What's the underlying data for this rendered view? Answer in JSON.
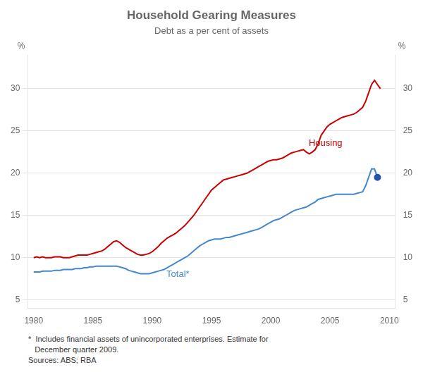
{
  "chart_data": {
    "type": "line",
    "title": "Household Gearing Measures",
    "subtitle": "Debt as a per cent of assets",
    "ylabel": "%",
    "y2label": "%",
    "xlim": [
      1979.5,
      2010.5
    ],
    "xticks": [
      1980,
      1985,
      1990,
      1995,
      2000,
      2005,
      2010
    ],
    "ylim": [
      4,
      34
    ],
    "yticks": [
      5,
      10,
      15,
      20,
      25,
      30
    ],
    "y2lim": [
      4,
      34
    ],
    "y2ticks": [
      5,
      10,
      15,
      20,
      25,
      30
    ],
    "grid": "y",
    "footnote": [
      "*  Includes financial assets of unincorporated enterprises. Estimate for",
      "   December quarter 2009.",
      "Sources: ABS; RBA"
    ],
    "annotations": [
      {
        "text": "Housing",
        "x": 2003.2,
        "y": 23.5,
        "color": "#cc0000"
      },
      {
        "text": "Total*",
        "x": 1991.2,
        "y": 8.0,
        "color": "#4488cc"
      }
    ],
    "series": [
      {
        "name": "Housing",
        "color": "#cc0000",
        "type": "line",
        "marker": "none",
        "x": [
          1980,
          1980.25,
          1980.5,
          1980.75,
          1981,
          1981.25,
          1981.5,
          1981.75,
          1982,
          1982.25,
          1982.5,
          1982.75,
          1983,
          1983.25,
          1983.5,
          1983.75,
          1984,
          1984.25,
          1984.5,
          1984.75,
          1985,
          1985.25,
          1985.5,
          1985.75,
          1986,
          1986.25,
          1986.5,
          1986.75,
          1987,
          1987.25,
          1987.5,
          1987.75,
          1988,
          1988.25,
          1988.5,
          1988.75,
          1989,
          1989.25,
          1989.5,
          1989.75,
          1990,
          1990.25,
          1990.5,
          1990.75,
          1991,
          1991.25,
          1991.5,
          1991.75,
          1992,
          1992.25,
          1992.5,
          1992.75,
          1993,
          1993.25,
          1993.5,
          1993.75,
          1994,
          1994.25,
          1994.5,
          1994.75,
          1995,
          1995.25,
          1995.5,
          1995.75,
          1996,
          1996.25,
          1996.5,
          1996.75,
          1997,
          1997.25,
          1997.5,
          1997.75,
          1998,
          1998.25,
          1998.5,
          1998.75,
          1999,
          1999.25,
          1999.5,
          1999.75,
          2000,
          2000.25,
          2000.5,
          2000.75,
          2001,
          2001.25,
          2001.5,
          2001.75,
          2002,
          2002.25,
          2002.5,
          2002.75,
          2003,
          2003.25,
          2003.5,
          2003.75,
          2004,
          2004.25,
          2004.5,
          2004.75,
          2005,
          2005.25,
          2005.5,
          2005.75,
          2006,
          2006.25,
          2006.5,
          2006.75,
          2007,
          2007.25,
          2007.5,
          2007.75,
          2008,
          2008.25,
          2008.5,
          2008.75,
          2009,
          2009.25
        ],
        "values": [
          10.0,
          10.1,
          10.0,
          10.1,
          10.0,
          10.0,
          10.0,
          10.1,
          10.1,
          10.1,
          10.0,
          10.0,
          10.0,
          10.1,
          10.2,
          10.3,
          10.3,
          10.3,
          10.3,
          10.4,
          10.5,
          10.6,
          10.7,
          10.8,
          11.0,
          11.3,
          11.6,
          11.9,
          12.0,
          11.8,
          11.5,
          11.2,
          11.0,
          10.8,
          10.6,
          10.4,
          10.3,
          10.3,
          10.4,
          10.5,
          10.7,
          11.0,
          11.3,
          11.7,
          12.0,
          12.3,
          12.5,
          12.7,
          12.9,
          13.2,
          13.5,
          13.8,
          14.2,
          14.6,
          15.0,
          15.5,
          16.0,
          16.5,
          17.0,
          17.5,
          18.0,
          18.3,
          18.6,
          18.9,
          19.2,
          19.3,
          19.4,
          19.5,
          19.6,
          19.7,
          19.8,
          19.9,
          20.0,
          20.2,
          20.4,
          20.6,
          20.8,
          21.0,
          21.2,
          21.4,
          21.5,
          21.6,
          21.6,
          21.7,
          21.8,
          22.0,
          22.2,
          22.4,
          22.5,
          22.6,
          22.7,
          22.8,
          22.5,
          22.3,
          22.5,
          22.8,
          23.5,
          24.5,
          25.0,
          25.5,
          25.8,
          26.0,
          26.2,
          26.4,
          26.6,
          26.7,
          26.8,
          26.9,
          27.0,
          27.2,
          27.5,
          27.8,
          28.5,
          29.5,
          30.5,
          31.0,
          30.5,
          30.0
        ]
      },
      {
        "name": "Total*",
        "color": "#4488cc",
        "type": "line",
        "marker": "none",
        "x": [
          1980,
          1980.25,
          1980.5,
          1980.75,
          1981,
          1981.25,
          1981.5,
          1981.75,
          1982,
          1982.25,
          1982.5,
          1982.75,
          1983,
          1983.25,
          1983.5,
          1983.75,
          1984,
          1984.25,
          1984.5,
          1984.75,
          1985,
          1985.25,
          1985.5,
          1985.75,
          1986,
          1986.25,
          1986.5,
          1986.75,
          1987,
          1987.25,
          1987.5,
          1987.75,
          1988,
          1988.25,
          1988.5,
          1988.75,
          1989,
          1989.25,
          1989.5,
          1989.75,
          1990,
          1990.25,
          1990.5,
          1990.75,
          1991,
          1991.25,
          1991.5,
          1991.75,
          1992,
          1992.25,
          1992.5,
          1992.75,
          1993,
          1993.25,
          1993.5,
          1993.75,
          1994,
          1994.25,
          1994.5,
          1994.75,
          1995,
          1995.25,
          1995.5,
          1995.75,
          1996,
          1996.25,
          1996.5,
          1996.75,
          1997,
          1997.25,
          1997.5,
          1997.75,
          1998,
          1998.25,
          1998.5,
          1998.75,
          1999,
          1999.25,
          1999.5,
          1999.75,
          2000,
          2000.25,
          2000.5,
          2000.75,
          2001,
          2001.25,
          2001.5,
          2001.75,
          2002,
          2002.25,
          2002.5,
          2002.75,
          2003,
          2003.25,
          2003.5,
          2003.75,
          2004,
          2004.25,
          2004.5,
          2004.75,
          2005,
          2005.25,
          2005.5,
          2005.75,
          2006,
          2006.25,
          2006.5,
          2006.75,
          2007,
          2007.25,
          2007.5,
          2007.75,
          2008,
          2008.25,
          2008.5,
          2008.75,
          2009
        ],
        "values": [
          8.3,
          8.3,
          8.3,
          8.4,
          8.4,
          8.4,
          8.4,
          8.5,
          8.5,
          8.5,
          8.6,
          8.6,
          8.6,
          8.6,
          8.7,
          8.7,
          8.7,
          8.8,
          8.8,
          8.9,
          8.9,
          9.0,
          9.0,
          9.0,
          9.0,
          9.0,
          9.0,
          9.0,
          9.0,
          8.9,
          8.8,
          8.7,
          8.5,
          8.4,
          8.3,
          8.2,
          8.1,
          8.1,
          8.1,
          8.1,
          8.2,
          8.3,
          8.4,
          8.5,
          8.6,
          8.8,
          9.0,
          9.2,
          9.4,
          9.6,
          9.8,
          10.0,
          10.2,
          10.5,
          10.8,
          11.1,
          11.4,
          11.6,
          11.8,
          12.0,
          12.1,
          12.2,
          12.2,
          12.2,
          12.3,
          12.4,
          12.4,
          12.5,
          12.6,
          12.7,
          12.8,
          12.9,
          13.0,
          13.1,
          13.2,
          13.3,
          13.4,
          13.6,
          13.8,
          14.0,
          14.2,
          14.4,
          14.5,
          14.6,
          14.8,
          15.0,
          15.2,
          15.4,
          15.6,
          15.7,
          15.8,
          15.9,
          16.0,
          16.2,
          16.4,
          16.6,
          16.9,
          17.0,
          17.1,
          17.2,
          17.3,
          17.4,
          17.5,
          17.5,
          17.5,
          17.5,
          17.5,
          17.5,
          17.5,
          17.6,
          17.7,
          17.8,
          18.5,
          19.5,
          20.5,
          20.5,
          19.5
        ]
      },
      {
        "color": "#2255aa",
        "type": "scatter",
        "marker": "circle",
        "x": [
          2009.0
        ],
        "values": [
          19.5
        ]
      }
    ]
  }
}
